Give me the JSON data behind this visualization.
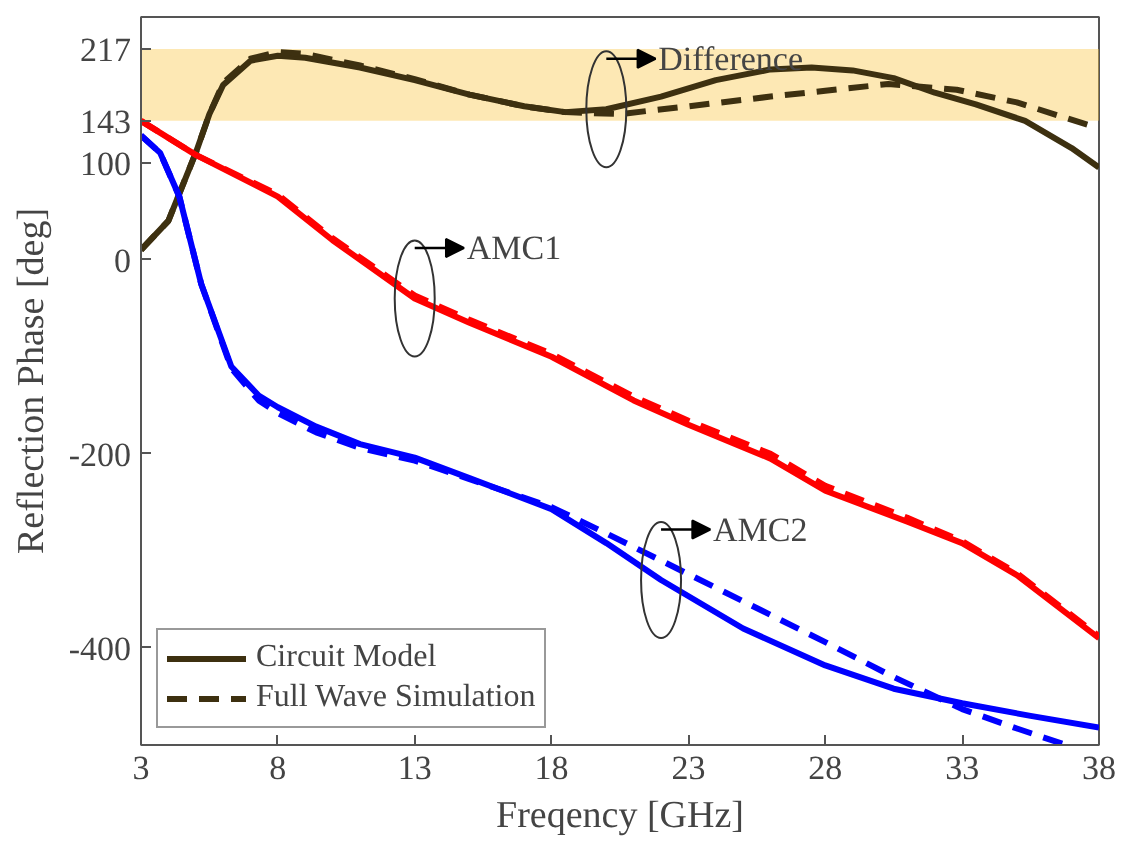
{
  "chart_data": {
    "type": "line",
    "xlabel": "Freqency [GHz]",
    "ylabel": "Reflection Phase [deg]",
    "xlim": [
      3,
      38
    ],
    "ylim": [
      -500,
      250
    ],
    "xticks": [
      3,
      8,
      13,
      18,
      23,
      28,
      33,
      38
    ],
    "yticks": [
      -400,
      -200,
      0,
      100,
      143,
      217
    ],
    "grid": false,
    "legend": "bottom left",
    "series": [
      {
        "name": "Circuit Model",
        "color": "#3d3010",
        "line_style": "solid",
        "x": [
          3,
          4,
          5,
          5.5,
          6,
          7,
          8,
          9,
          11,
          13,
          15,
          17,
          18.5,
          20,
          22,
          24,
          26,
          27.5,
          29,
          30.5,
          32,
          33.5,
          35.3,
          37,
          38
        ],
        "values": [
          10,
          40,
          110,
          150,
          180,
          205,
          210,
          208,
          198,
          185,
          170,
          158,
          152,
          155,
          168,
          185,
          196,
          198,
          195,
          187,
          172,
          160,
          143,
          115,
          95
        ]
      },
      {
        "name": "Full Wave Simulation",
        "color": "#3d3010",
        "line_style": "dashed",
        "x": [
          3,
          4,
          5,
          5.5,
          6,
          7,
          8,
          9,
          11,
          13,
          15,
          17,
          18.5,
          20.5,
          23,
          26,
          28,
          30.3,
          32.8,
          35,
          37.8
        ],
        "values": [
          10,
          40,
          110,
          150,
          182,
          207,
          214,
          212,
          200,
          186,
          170,
          158,
          152,
          150,
          158,
          168,
          174,
          181,
          175,
          162,
          137
        ]
      },
      {
        "color": "#ff0000",
        "line_style": "solid",
        "x": [
          3,
          5,
          8,
          10,
          13,
          15,
          18,
          21,
          23,
          26,
          28,
          31,
          33,
          35,
          38
        ],
        "values": [
          143,
          108,
          65,
          20,
          -40,
          -65,
          -100,
          -145,
          -170,
          -205,
          -238,
          -270,
          -292,
          -325,
          -390
        ]
      },
      {
        "color": "#ff0000",
        "line_style": "dashed",
        "x": [
          3,
          5,
          8,
          10,
          13,
          15,
          18,
          21,
          23,
          26,
          28,
          31,
          33,
          35,
          38
        ],
        "values": [
          143,
          108,
          67,
          22,
          -37,
          -62,
          -97,
          -141,
          -166,
          -200,
          -233,
          -266,
          -290,
          -323,
          -388
        ]
      },
      {
        "color": "#0000ff",
        "line_style": "solid",
        "x": [
          3,
          3.7,
          4.4,
          5.2,
          6.3,
          7.3,
          8,
          9.4,
          11,
          13,
          15,
          18,
          20,
          22,
          25,
          28,
          30.5,
          33,
          35.5,
          38
        ],
        "values": [
          128,
          110,
          65,
          -25,
          -110,
          -140,
          -152,
          -172,
          -190,
          -204,
          -225,
          -257,
          -292,
          -330,
          -380,
          -418,
          -442,
          -457,
          -470,
          -482
        ]
      },
      {
        "color": "#0000ff",
        "line_style": "dashed",
        "x": [
          3,
          3.7,
          4.4,
          5.2,
          6.3,
          7.3,
          8,
          9.4,
          11,
          13,
          15,
          18,
          20,
          22,
          25,
          28,
          30.5,
          33,
          35,
          36.8
        ],
        "values": [
          128,
          110,
          65,
          -25,
          -112,
          -145,
          -158,
          -178,
          -194,
          -207,
          -226,
          -255,
          -282,
          -310,
          -352,
          -394,
          -430,
          -463,
          -483,
          -500
        ]
      }
    ],
    "bands": [
      {
        "axis": "y",
        "from": 143,
        "to": 217,
        "color": "#f9c543"
      }
    ],
    "annotations": [
      {
        "text": "AMC1",
        "x": 13,
        "y": -40
      },
      {
        "text": "Difference",
        "x": 20,
        "y": 155
      },
      {
        "text": "AMC2",
        "x": 22,
        "y": -330
      }
    ]
  }
}
